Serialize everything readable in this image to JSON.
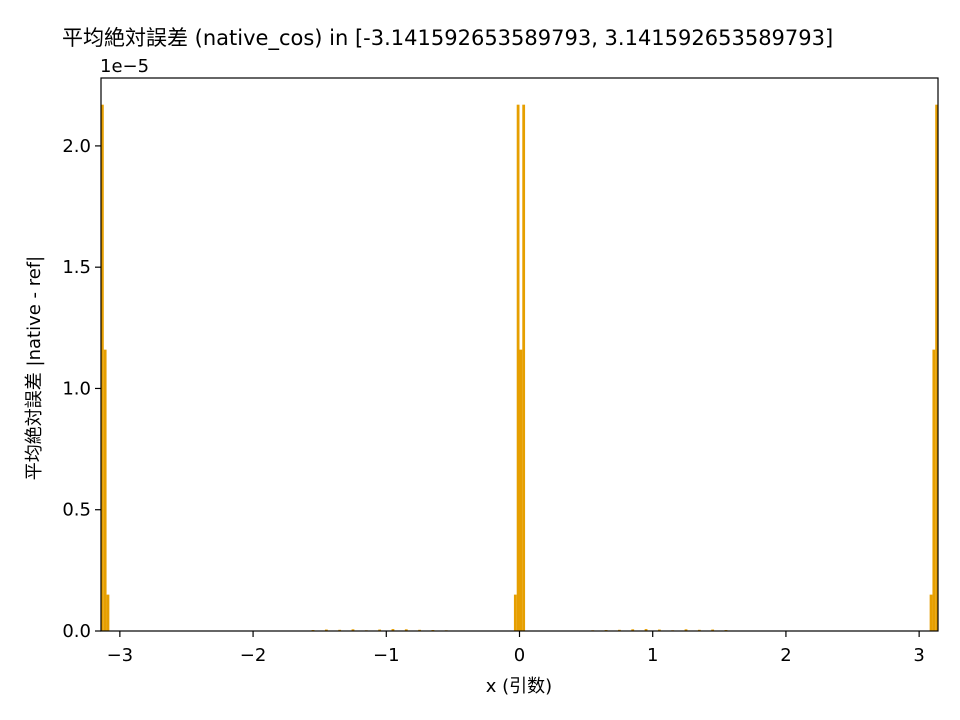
{
  "chart_data": {
    "type": "bar",
    "title": "平均絶対誤差 (native_cos) in [-3.141592653589793, 3.141592653589793]",
    "xlabel": "x (引数)",
    "ylabel": "平均絶対誤差 |native - ref|",
    "y_scale_label": "1e−5",
    "xlim": [
      -3.14159,
      3.14159
    ],
    "ylim": [
      0,
      2.28
    ],
    "y_multiplier": "1e-5",
    "xticks": [
      -3,
      -2,
      -1,
      0,
      1,
      2,
      3
    ],
    "xtick_labels": [
      "−3",
      "−2",
      "−1",
      "0",
      "1",
      "2",
      "3"
    ],
    "yticks": [
      0.0,
      0.5,
      1.0,
      1.5,
      2.0
    ],
    "ytick_labels": [
      "0.0",
      "0.5",
      "1.0",
      "1.5",
      "2.0"
    ],
    "grid": false,
    "bar_color": "#e69f00",
    "bar_width": 0.0209,
    "x": [
      -3.1312,
      -3.1103,
      -3.0893,
      -0.0314,
      -0.0105,
      0.0105,
      0.0314,
      3.0893,
      3.1103,
      3.1312,
      -1.55,
      -1.45,
      -1.35,
      -1.25,
      -1.15,
      -1.05,
      -0.95,
      -0.85,
      -0.75,
      -0.65,
      -0.55,
      0.55,
      0.65,
      0.75,
      0.85,
      0.95,
      1.05,
      1.15,
      1.25,
      1.35,
      1.45,
      1.55
    ],
    "values": [
      2.17,
      1.16,
      0.15,
      0.15,
      2.17,
      1.16,
      2.17,
      0.15,
      1.16,
      2.17,
      0.004,
      0.006,
      0.005,
      0.007,
      0.003,
      0.006,
      0.008,
      0.007,
      0.005,
      0.004,
      0.003,
      0.003,
      0.004,
      0.005,
      0.007,
      0.008,
      0.006,
      0.003,
      0.007,
      0.005,
      0.006,
      0.004
    ]
  }
}
